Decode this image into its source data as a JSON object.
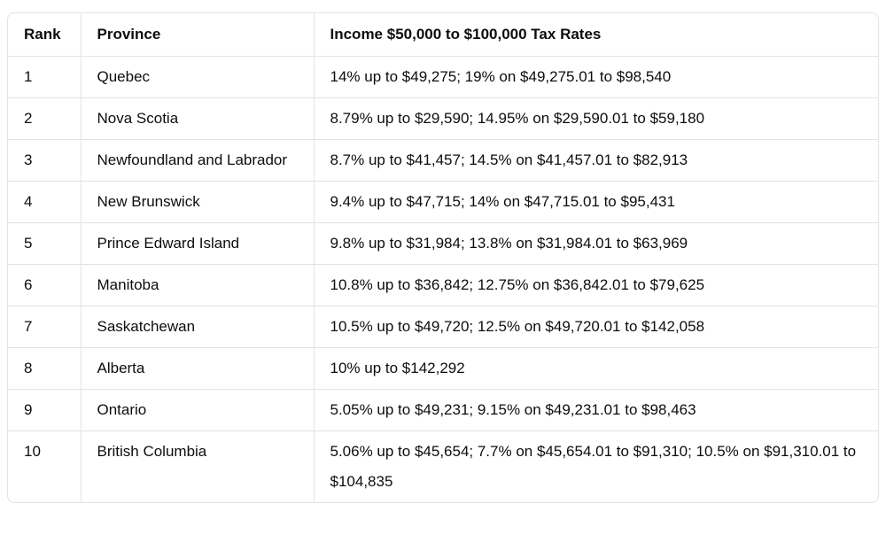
{
  "table": {
    "header": [
      "Rank",
      "Province",
      "Income $50,000 to $100,000 Tax Rates"
    ],
    "rows": [
      [
        "1",
        "Quebec",
        "14% up to $49,275; 19% on $49,275.01 to $98,540"
      ],
      [
        "2",
        "Nova Scotia",
        "8.79% up to $29,590; 14.95% on $29,590.01 to $59,180"
      ],
      [
        "3",
        "Newfoundland and Labrador",
        "8.7% up to $41,457; 14.5% on $41,457.01 to $82,913"
      ],
      [
        "4",
        "New Brunswick",
        "9.4% up to $47,715; 14% on $47,715.01 to $95,431"
      ],
      [
        "5",
        "Prince Edward Island",
        "9.8% up to $31,984; 13.8% on $31,984.01 to $63,969"
      ],
      [
        "6",
        "Manitoba",
        "10.8% up to $36,842; 12.75% on $36,842.01 to $79,625"
      ],
      [
        "7",
        "Saskatchewan",
        "10.5% up to $49,720; 12.5% on $49,720.01 to $142,058"
      ],
      [
        "8",
        "Alberta",
        "10% up to $142,292"
      ],
      [
        "9",
        "Ontario",
        "5.05% up to $49,231; 9.15% on $49,231.01 to $98,463"
      ],
      [
        "10",
        "British Columbia",
        "5.06% up to $45,654; 7.7% on $45,654.01 to $91,310; 10.5% on $91,310.01 to $104,835"
      ]
    ]
  }
}
